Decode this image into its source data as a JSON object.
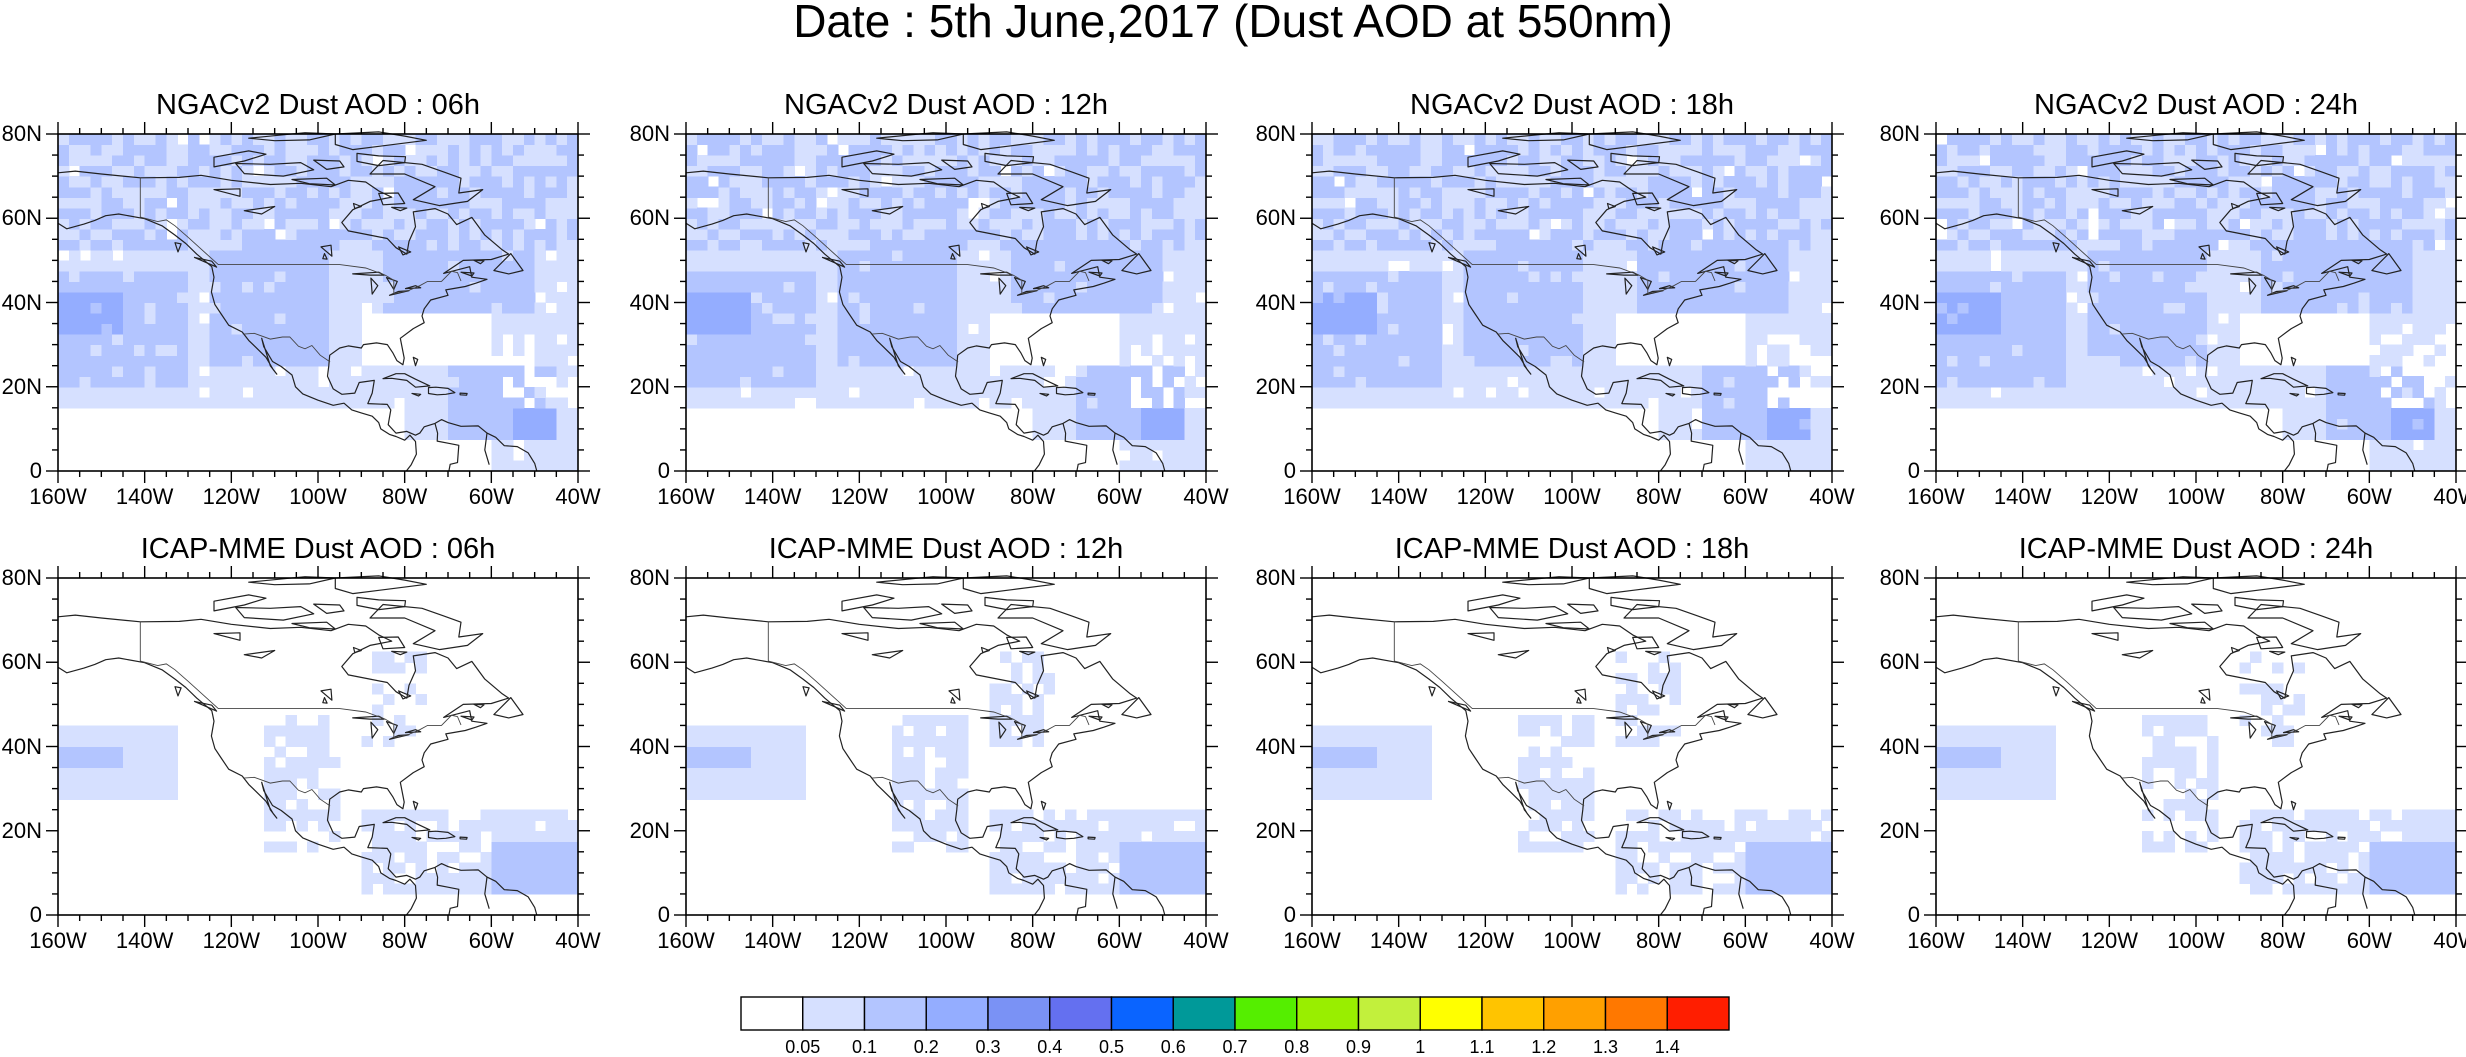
{
  "figure": {
    "title": "Date : 5th June,2017 (Dust AOD at 550nm)"
  },
  "axes": {
    "lat_ticks": [
      "80N",
      "60N",
      "40N",
      "20N",
      "0"
    ],
    "lon_ticks": [
      "160W",
      "140W",
      "120W",
      "100W",
      "80W",
      "60W",
      "40W"
    ]
  },
  "panels": [
    {
      "title": "NGACv2 Dust AOD : 06h",
      "model": "NGACv2",
      "forecast_hour": "06h"
    },
    {
      "title": "NGACv2 Dust AOD : 12h",
      "model": "NGACv2",
      "forecast_hour": "12h"
    },
    {
      "title": "NGACv2 Dust AOD : 18h",
      "model": "NGACv2",
      "forecast_hour": "18h"
    },
    {
      "title": "NGACv2 Dust AOD : 24h",
      "model": "NGACv2",
      "forecast_hour": "24h"
    },
    {
      "title": "ICAP-MME Dust AOD : 06h",
      "model": "ICAP-MME",
      "forecast_hour": "06h"
    },
    {
      "title": "ICAP-MME Dust AOD : 12h",
      "model": "ICAP-MME",
      "forecast_hour": "12h"
    },
    {
      "title": "ICAP-MME Dust AOD : 18h",
      "model": "ICAP-MME",
      "forecast_hour": "18h"
    },
    {
      "title": "ICAP-MME Dust AOD : 24h",
      "model": "ICAP-MME",
      "forecast_hour": "24h"
    }
  ],
  "colorbar": {
    "labels": [
      "0.05",
      "0.1",
      "0.2",
      "0.3",
      "0.4",
      "0.5",
      "0.6",
      "0.7",
      "0.8",
      "0.9",
      "1",
      "1.1",
      "1.2",
      "1.3",
      "1.4"
    ],
    "colors": [
      "#ffffff",
      "#d6e0ff",
      "#b3c5ff",
      "#94adff",
      "#7a92f5",
      "#6470f0",
      "#0a64ff",
      "#009999",
      "#55ee00",
      "#99ee00",
      "#c2f03c",
      "#ffff00",
      "#ffc400",
      "#ffa000",
      "#ff7800",
      "#ff1e00"
    ]
  }
}
